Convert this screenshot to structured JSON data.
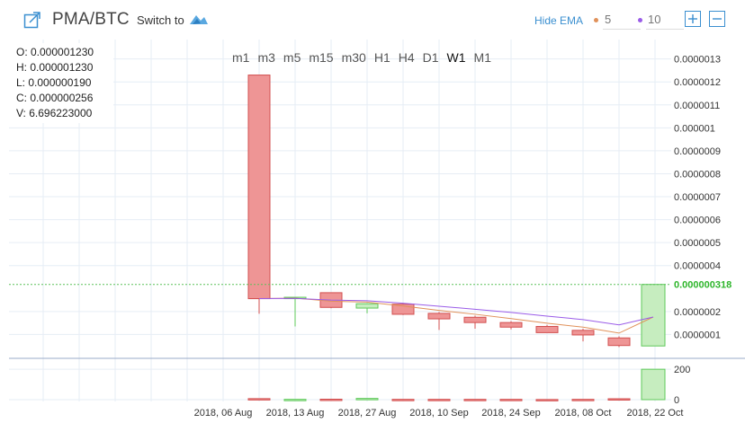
{
  "header": {
    "pair": "PMA/BTC",
    "switch_label": "Switch to",
    "hide_ema_label": "Hide EMA",
    "ema_short": "5",
    "ema_long": "10",
    "ema_short_color": "#e0915a",
    "ema_long_color": "#9a5ce8"
  },
  "ohlc": {
    "o": "O: 0.000001230",
    "h": "H: 0.000001230",
    "l": "L: 0.000000190",
    "c": "C: 0.000000256",
    "v": "V: 6.696223000"
  },
  "timeframes": [
    "m1",
    "m3",
    "m5",
    "m15",
    "m30",
    "H1",
    "H4",
    "D1",
    "W1",
    "M1"
  ],
  "active_timeframe": "W1",
  "chart_data": {
    "type": "candlestick",
    "price_axis": {
      "min": 0.0,
      "max": 1.3e-06,
      "ticks": [
        {
          "value": 1e-07,
          "label": "0.0000001"
        },
        {
          "value": 2e-07,
          "label": "0.0000002"
        },
        {
          "value": 4e-07,
          "label": "0.0000004"
        },
        {
          "value": 5e-07,
          "label": "0.0000005"
        },
        {
          "value": 6e-07,
          "label": "0.0000006"
        },
        {
          "value": 7e-07,
          "label": "0.0000007"
        },
        {
          "value": 8e-07,
          "label": "0.0000008"
        },
        {
          "value": 9e-07,
          "label": "0.0000009"
        },
        {
          "value": 1e-06,
          "label": "0.000001"
        },
        {
          "value": 1.1e-06,
          "label": "0.0000011"
        },
        {
          "value": 1.2e-06,
          "label": "0.0000012"
        },
        {
          "value": 1.3e-06,
          "label": "0.0000013"
        }
      ],
      "current_price": 3.18e-07,
      "current_label": "0.000000318"
    },
    "volume_axis": {
      "max": 260,
      "ticks": [
        {
          "value": 0,
          "label": "0"
        },
        {
          "value": 200,
          "label": "200"
        }
      ]
    },
    "x_labels": [
      "2018, 06 Aug",
      "2018, 13 Aug",
      "2018, 27 Aug",
      "2018, 10 Sep",
      "2018, 24 Sep",
      "2018, 08 Oct",
      "2018, 22 Oct"
    ],
    "candles": [
      {
        "o": 1.23e-06,
        "h": 1.23e-06,
        "l": 1.9e-07,
        "c": 2.56e-07,
        "v": 6.7
      },
      {
        "o": 2.56e-07,
        "h": 2.62e-07,
        "l": 1.35e-07,
        "c": 2.62e-07,
        "v": 2
      },
      {
        "o": 2.82e-07,
        "h": 2.82e-07,
        "l": 2.14e-07,
        "c": 2.18e-07,
        "v": 3
      },
      {
        "o": 2.15e-07,
        "h": 2.36e-07,
        "l": 1.92e-07,
        "c": 2.34e-07,
        "v": 8
      },
      {
        "o": 2.32e-07,
        "h": 2.36e-07,
        "l": 1.85e-07,
        "c": 1.88e-07,
        "v": 2
      },
      {
        "o": 1.92e-07,
        "h": 1.98e-07,
        "l": 1.2e-07,
        "c": 1.68e-07,
        "v": 2
      },
      {
        "o": 1.75e-07,
        "h": 1.82e-07,
        "l": 1.25e-07,
        "c": 1.52e-07,
        "v": 2
      },
      {
        "o": 1.52e-07,
        "h": 1.58e-07,
        "l": 1.22e-07,
        "c": 1.32e-07,
        "v": 2
      },
      {
        "o": 1.35e-07,
        "h": 1.42e-07,
        "l": 1.1e-07,
        "c": 1.08e-07,
        "v": 1
      },
      {
        "o": 1.18e-07,
        "h": 1.25e-07,
        "l": 7e-08,
        "c": 9.8e-08,
        "v": 2
      },
      {
        "o": 8.5e-08,
        "h": 9.2e-08,
        "l": 4.5e-08,
        "c": 5.2e-08,
        "v": 6
      },
      {
        "o": 5e-08,
        "h": 3.18e-07,
        "l": 5e-08,
        "c": 3.18e-07,
        "v": 200
      }
    ],
    "ema_short_values": [
      2.56e-07,
      2.58e-07,
      2.45e-07,
      2.41e-07,
      2.24e-07,
      2.05e-07,
      1.88e-07,
      1.69e-07,
      1.49e-07,
      1.32e-07,
      1.06e-07,
      1.76e-07
    ],
    "ema_long_values": [
      2.56e-07,
      2.57e-07,
      2.5e-07,
      2.47e-07,
      2.36e-07,
      2.23e-07,
      2.1e-07,
      1.96e-07,
      1.8e-07,
      1.65e-07,
      1.42e-07,
      1.76e-07
    ],
    "colors": {
      "up_fill": "#c6edbf",
      "up_stroke": "#5ec95a",
      "down_fill": "#ee9595",
      "down_stroke": "#d24f4f",
      "current_line": "#5cc25a",
      "current_label_bg": "#ffffff",
      "current_label_text": "#2db52a",
      "grid": "#e6edf5",
      "separator": "#9aabc8",
      "axis_text": "#333333"
    }
  }
}
